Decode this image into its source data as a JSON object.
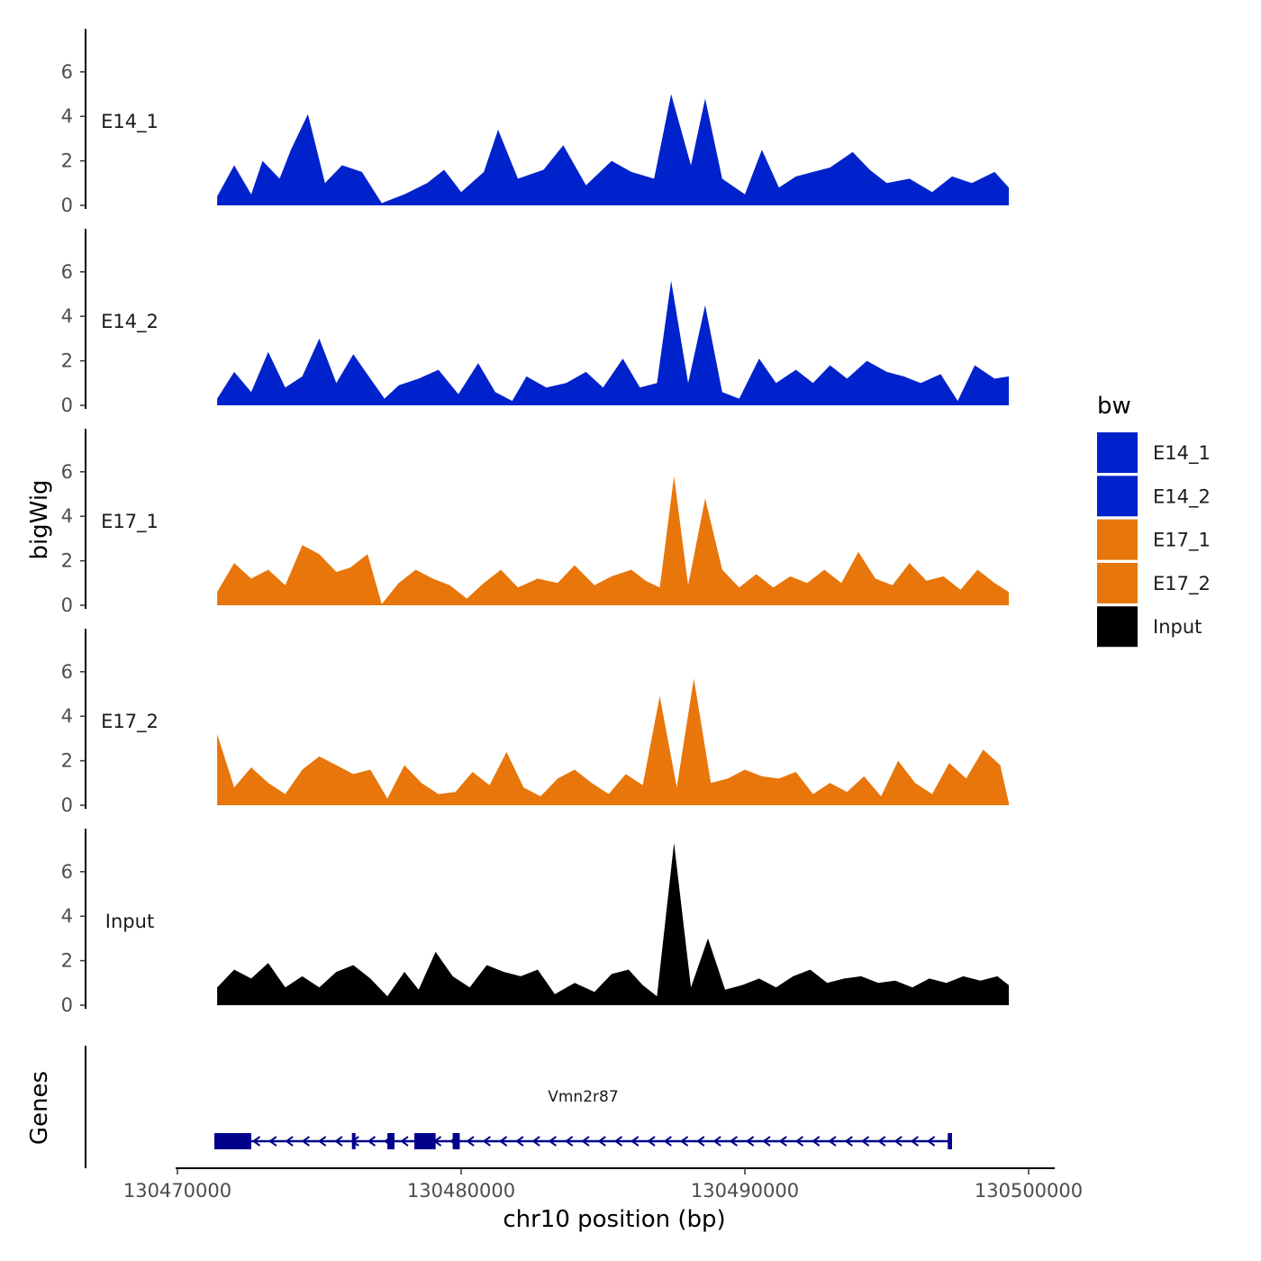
{
  "chart_data": {
    "type": "area",
    "title": "",
    "xlabel": "chr10 position (bp)",
    "ylabel": "bigWig",
    "genes_label": "Genes",
    "xlim": [
      130469800,
      130500800
    ],
    "ylim": [
      0,
      8
    ],
    "x_ticks": [
      130470000,
      130480000,
      130490000,
      130500000
    ],
    "x_tick_labels": [
      "130470000",
      "130480000",
      "130490000",
      "130500000"
    ],
    "y_ticks": [
      0,
      2,
      4,
      6
    ],
    "y_tick_labels": [
      "0",
      "2",
      "4",
      "6"
    ],
    "legend": {
      "title": "bw",
      "items": [
        {
          "name": "E14_1",
          "color": "#0022CC"
        },
        {
          "name": "E14_2",
          "color": "#0022CC"
        },
        {
          "name": "E17_1",
          "color": "#E8760A"
        },
        {
          "name": "E17_2",
          "color": "#E8760A"
        },
        {
          "name": "Input",
          "color": "#000000"
        }
      ]
    },
    "series": [
      {
        "name": "E14_1",
        "color": "#0022CC",
        "x": [
          130471400,
          130472000,
          130472600,
          130473000,
          130473600,
          130474000,
          130474600,
          130475200,
          130475800,
          130476500,
          130477200,
          130478000,
          130478800,
          130479400,
          130480000,
          130480800,
          130481300,
          130482000,
          130482900,
          130483600,
          130484400,
          130485300,
          130486000,
          130486800,
          130487400,
          130488100,
          130488600,
          130489200,
          130490000,
          130490600,
          130491200,
          130491800,
          130492400,
          130493000,
          130493800,
          130494400,
          130495000,
          130495800,
          130496600,
          130497300,
          130498000,
          130498800,
          130499300
        ],
        "values": [
          0.4,
          1.8,
          0.5,
          2.0,
          1.2,
          2.5,
          4.1,
          1.0,
          1.8,
          1.5,
          0.1,
          0.5,
          1.0,
          1.6,
          0.6,
          1.5,
          3.4,
          1.2,
          1.6,
          2.7,
          0.9,
          2.0,
          1.5,
          1.2,
          5.0,
          1.8,
          4.8,
          1.2,
          0.5,
          2.5,
          0.8,
          1.3,
          1.5,
          1.7,
          2.4,
          1.6,
          1.0,
          1.2,
          0.6,
          1.3,
          1.0,
          1.5,
          0.8
        ]
      },
      {
        "name": "E14_2",
        "color": "#0022CC",
        "x": [
          130471400,
          130472000,
          130472600,
          130473200,
          130473800,
          130474400,
          130475000,
          130475600,
          130476200,
          130476800,
          130477300,
          130477800,
          130478500,
          130479200,
          130479900,
          130480600,
          130481200,
          130481800,
          130482300,
          130483000,
          130483700,
          130484400,
          130485000,
          130485700,
          130486300,
          130486900,
          130487400,
          130488000,
          130488600,
          130489200,
          130489800,
          130490500,
          130491100,
          130491800,
          130492400,
          130493000,
          130493600,
          130494300,
          130495000,
          130495600,
          130496200,
          130496900,
          130497500,
          130498100,
          130498800,
          130499300
        ],
        "values": [
          0.3,
          1.5,
          0.6,
          2.4,
          0.8,
          1.3,
          3.0,
          1.0,
          2.3,
          1.2,
          0.3,
          0.9,
          1.2,
          1.6,
          0.5,
          1.9,
          0.6,
          0.2,
          1.3,
          0.8,
          1.0,
          1.5,
          0.8,
          2.1,
          0.8,
          1.0,
          5.6,
          1.0,
          4.5,
          0.6,
          0.3,
          2.1,
          1.0,
          1.6,
          1.0,
          1.8,
          1.2,
          2.0,
          1.5,
          1.3,
          1.0,
          1.4,
          0.2,
          1.8,
          1.2,
          1.3
        ]
      },
      {
        "name": "E17_1",
        "color": "#E8760A",
        "x": [
          130471400,
          130472000,
          130472600,
          130473200,
          130473800,
          130474400,
          130475000,
          130475600,
          130476100,
          130476700,
          130477200,
          130477800,
          130478400,
          130479000,
          130479600,
          130480200,
          130480800,
          130481400,
          130482000,
          130482700,
          130483400,
          130484000,
          130484700,
          130485300,
          130486000,
          130486500,
          130487000,
          130487500,
          130488000,
          130488600,
          130489200,
          130489800,
          130490400,
          130491000,
          130491600,
          130492200,
          130492800,
          130493400,
          130494000,
          130494600,
          130495200,
          130495800,
          130496400,
          130497000,
          130497600,
          130498200,
          130498800,
          130499300
        ],
        "values": [
          0.6,
          1.9,
          1.2,
          1.6,
          0.9,
          2.7,
          2.3,
          1.5,
          1.7,
          2.3,
          0.05,
          1.0,
          1.6,
          1.2,
          0.9,
          0.3,
          1.0,
          1.6,
          0.8,
          1.2,
          1.0,
          1.8,
          0.9,
          1.3,
          1.6,
          1.1,
          0.8,
          5.8,
          0.9,
          4.8,
          1.6,
          0.8,
          1.4,
          0.8,
          1.3,
          1.0,
          1.6,
          1.0,
          2.4,
          1.2,
          0.9,
          1.9,
          1.1,
          1.3,
          0.7,
          1.6,
          1.0,
          0.6
        ]
      },
      {
        "name": "E17_2",
        "color": "#E8760A",
        "x": [
          130471400,
          130472000,
          130472600,
          130473200,
          130473800,
          130474400,
          130475000,
          130475600,
          130476200,
          130476800,
          130477400,
          130478000,
          130478600,
          130479200,
          130479800,
          130480400,
          130481000,
          130481600,
          130482200,
          130482800,
          130483400,
          130484000,
          130484600,
          130485200,
          130485800,
          130486400,
          130487000,
          130487600,
          130488200,
          130488800,
          130489400,
          130490000,
          130490600,
          130491200,
          130491800,
          130492400,
          130493000,
          130493600,
          130494200,
          130494800,
          130495400,
          130496000,
          130496600,
          130497200,
          130497800,
          130498400,
          130499000,
          130499300
        ],
        "values": [
          3.2,
          0.8,
          1.7,
          1.0,
          0.5,
          1.6,
          2.2,
          1.8,
          1.4,
          1.6,
          0.3,
          1.8,
          1.0,
          0.5,
          0.6,
          1.5,
          0.9,
          2.4,
          0.8,
          0.4,
          1.2,
          1.6,
          1.0,
          0.5,
          1.4,
          0.9,
          4.9,
          0.8,
          5.7,
          1.0,
          1.2,
          1.6,
          1.3,
          1.2,
          1.5,
          0.5,
          1.0,
          0.6,
          1.3,
          0.4,
          2.0,
          1.0,
          0.5,
          1.9,
          1.2,
          2.5,
          1.8,
          0.1
        ]
      },
      {
        "name": "Input",
        "color": "#000000",
        "x": [
          130471400,
          130472000,
          130472600,
          130473200,
          130473800,
          130474400,
          130475000,
          130475600,
          130476200,
          130476800,
          130477400,
          130478000,
          130478500,
          130479100,
          130479700,
          130480300,
          130480900,
          130481500,
          130482100,
          130482700,
          130483300,
          130484000,
          130484700,
          130485300,
          130485900,
          130486400,
          130486900,
          130487500,
          130488100,
          130488700,
          130489300,
          130489900,
          130490500,
          130491100,
          130491700,
          130492300,
          130492900,
          130493500,
          130494100,
          130494700,
          130495300,
          130495900,
          130496500,
          130497100,
          130497700,
          130498300,
          130498900,
          130499300
        ],
        "values": [
          0.8,
          1.6,
          1.2,
          1.9,
          0.8,
          1.3,
          0.8,
          1.5,
          1.8,
          1.2,
          0.4,
          1.5,
          0.7,
          2.4,
          1.3,
          0.8,
          1.8,
          1.5,
          1.3,
          1.6,
          0.5,
          1.0,
          0.6,
          1.4,
          1.6,
          0.9,
          0.4,
          7.3,
          0.8,
          3.0,
          0.7,
          0.9,
          1.2,
          0.8,
          1.3,
          1.6,
          1.0,
          1.2,
          1.3,
          1.0,
          1.1,
          0.8,
          1.2,
          1.0,
          1.3,
          1.1,
          1.3,
          0.9
        ]
      }
    ],
    "gene_track": {
      "name": "Vmn2r87",
      "start": 130471300,
      "end": 130497300,
      "strand": "-",
      "exons": [
        [
          130471300,
          130472600
        ],
        [
          130476150,
          130476250
        ],
        [
          130477400,
          130477650
        ],
        [
          130478350,
          130479100
        ],
        [
          130479700,
          130479950
        ],
        [
          130497150,
          130497300
        ]
      ]
    }
  }
}
